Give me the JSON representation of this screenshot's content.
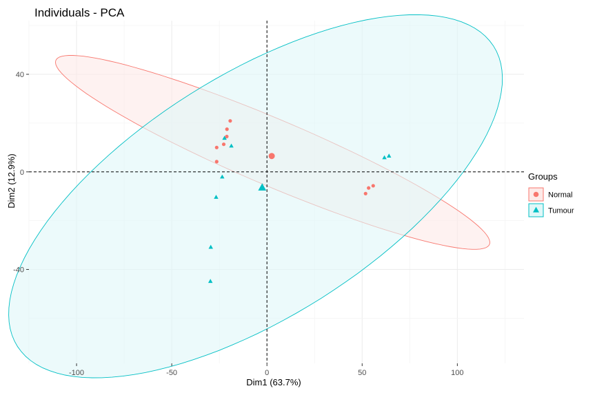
{
  "chart_data": {
    "type": "scatter",
    "title": "Individuals - PCA",
    "xlabel": "Dim1 (63.7%)",
    "ylabel": "Dim2 (12.9%)",
    "xlim": [
      -125,
      135
    ],
    "ylim": [
      -78.5,
      62
    ],
    "xticks": [
      -100,
      -50,
      0,
      50,
      100
    ],
    "yticks": [
      -40,
      0,
      40
    ],
    "xtick_labels": [
      "-100",
      "-50",
      "0",
      "50",
      "100"
    ],
    "ytick_labels": [
      "-40",
      "0",
      "40"
    ],
    "grid": true,
    "reference_lines": {
      "x": 0,
      "y": 0
    },
    "legend": {
      "title": "Groups",
      "position": "right"
    },
    "series": [
      {
        "name": "Normal",
        "color": "#F8766D",
        "fill": "#FDEAE8",
        "marker": "circle",
        "points": [
          [
            -19.3,
            20.9
          ],
          [
            -21.0,
            17.5
          ],
          [
            -21.1,
            14.5
          ],
          [
            -22.7,
            11.3
          ],
          [
            -26.4,
            10.0
          ],
          [
            -26.4,
            4.2
          ],
          [
            51.8,
            -8.9
          ],
          [
            53.4,
            -6.6
          ],
          [
            55.8,
            -5.7
          ]
        ],
        "centroid": [
          2.5,
          6.5
        ],
        "ellipse": {
          "center": [
            3.0,
            8.0
          ],
          "semi_major": 120.0,
          "semi_minor": 14.0,
          "angle_deg": -18.2
        }
      },
      {
        "name": "Tumour",
        "color": "#00BFC4",
        "fill": "#E0F7F8",
        "marker": "triangle",
        "points": [
          [
            -18.7,
            10.6
          ],
          [
            -22.3,
            13.8
          ],
          [
            -23.5,
            -2.1
          ],
          [
            -26.7,
            -10.4
          ],
          [
            -29.5,
            -30.9
          ],
          [
            -29.7,
            -44.9
          ],
          [
            61.7,
            5.8
          ],
          [
            64.1,
            6.5
          ]
        ],
        "centroid": [
          -2.5,
          -6.5
        ],
        "ellipse": {
          "center": [
            -6.0,
            -10.0
          ],
          "semi_major": 140.0,
          "semi_minor": 52.5,
          "angle_deg": 24.0
        }
      }
    ]
  }
}
